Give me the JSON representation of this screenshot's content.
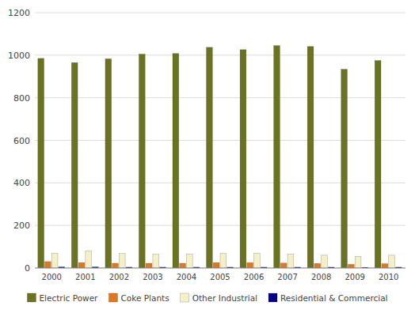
{
  "chart_data": {
    "type": "bar",
    "categories": [
      "2000",
      "2001",
      "2002",
      "2003",
      "2004",
      "2005",
      "2006",
      "2007",
      "2008",
      "2009",
      "2010"
    ],
    "series": [
      {
        "name": "Electric Power",
        "color": "#6b7220",
        "values": [
          985,
          965,
          983,
          1005,
          1008,
          1037,
          1026,
          1045,
          1041,
          934,
          975
        ]
      },
      {
        "name": "Coke Plants",
        "color": "#e07820",
        "values": [
          30,
          25,
          22,
          22,
          22,
          25,
          25,
          23,
          21,
          17,
          20
        ]
      },
      {
        "name": "Other Industrial",
        "color": "#f5f0c8",
        "values": [
          70,
          80,
          68,
          65,
          65,
          70,
          70,
          65,
          60,
          55,
          60
        ]
      },
      {
        "name": "Residential & Commercial",
        "color": "#00008b",
        "values": [
          5,
          5,
          4,
          4,
          4,
          4,
          4,
          4,
          4,
          3,
          4
        ]
      }
    ],
    "ylim": [
      0,
      1200
    ],
    "yticks": [
      0,
      200,
      400,
      600,
      800,
      1000,
      1200
    ],
    "grid": true,
    "legend": "bottom"
  }
}
